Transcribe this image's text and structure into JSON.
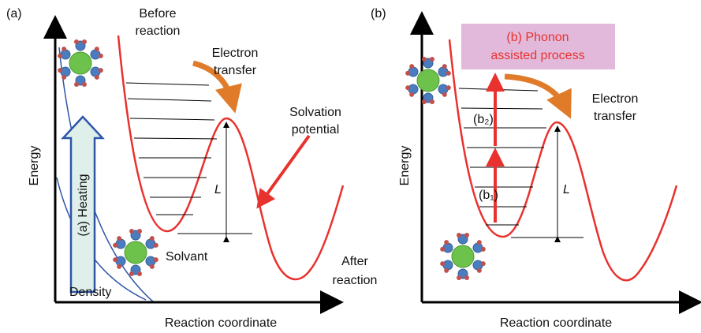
{
  "panels": [
    {
      "label": "(a)",
      "before": [
        "Before",
        "reaction"
      ],
      "transfer": [
        "Electron",
        "transfer"
      ],
      "solvation": [
        "Solvation",
        "potential"
      ],
      "y_axis": "Energy",
      "heating": "(a) Heating",
      "barrier": "L",
      "solvant": "Solvant",
      "after": [
        "After",
        "reaction"
      ],
      "density": "Density",
      "x_axis": "Reaction coordinate"
    },
    {
      "label": "(b)",
      "process": [
        "(b) Phonon",
        "assisted process"
      ],
      "transfer": [
        "Electron",
        "transfer"
      ],
      "y_axis": "Energy",
      "step2": "(b₂)",
      "step1": "(b₁)",
      "barrier": "L",
      "x_axis": "Reaction coordinate"
    }
  ]
}
